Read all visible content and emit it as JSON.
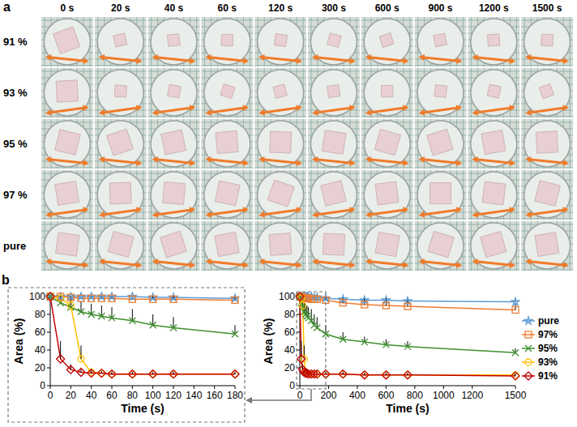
{
  "panel_a": {
    "letter": "a",
    "columns": [
      "0 s",
      "20 s",
      "40 s",
      "60 s",
      "120 s",
      "300 s",
      "600 s",
      "900 s",
      "1200 s",
      "1500 s"
    ],
    "rows": [
      "91 %",
      "93 %",
      "95 %",
      "97 %",
      "pure"
    ]
  },
  "panel_b_letter": "b",
  "chart_data": [
    {
      "type": "line",
      "x_label": "Time (s)",
      "y_label": "Area (%)",
      "x": [
        0,
        10,
        20,
        30,
        40,
        50,
        60,
        80,
        100,
        120,
        180
      ],
      "xlim": [
        0,
        180
      ],
      "xticks": [
        0,
        20,
        40,
        60,
        80,
        100,
        120,
        140,
        160,
        180
      ],
      "ylim": [
        0,
        100
      ],
      "yticks": [
        0,
        20,
        40,
        60,
        80,
        100
      ],
      "series": [
        {
          "color": "#5b9bd5",
          "marker": "star",
          "values": [
            100,
            100,
            100,
            100,
            100,
            100,
            100,
            100,
            99,
            99,
            98
          ],
          "errors": [
            0,
            0,
            0,
            0,
            0,
            0,
            0,
            0,
            1,
            1,
            2
          ]
        },
        {
          "color": "#ed7d31",
          "marker": "square",
          "values": [
            100,
            100,
            99,
            98,
            98,
            98,
            98,
            97,
            97,
            97,
            96
          ],
          "errors": [
            0,
            0,
            1,
            1,
            2,
            2,
            2,
            2,
            3,
            3,
            3
          ]
        },
        {
          "color": "#3f8f2f",
          "marker": "x",
          "values": [
            100,
            93,
            88,
            83,
            80,
            78,
            76,
            73,
            68,
            65,
            58
          ],
          "errors": [
            0,
            7,
            10,
            12,
            12,
            12,
            12,
            13,
            12,
            12,
            10
          ]
        },
        {
          "color": "#ffc000",
          "marker": "circle",
          "values": [
            100,
            98,
            90,
            30,
            15,
            14,
            13,
            13,
            13,
            13,
            13
          ],
          "errors": [
            0,
            2,
            8,
            15,
            3,
            2,
            2,
            2,
            2,
            2,
            2
          ]
        },
        {
          "color": "#c00000",
          "marker": "diamond",
          "values": [
            100,
            30,
            18,
            15,
            14,
            14,
            13,
            13,
            13,
            13,
            13
          ],
          "errors": [
            0,
            20,
            6,
            3,
            2,
            2,
            2,
            2,
            2,
            2,
            2
          ]
        }
      ]
    },
    {
      "type": "line",
      "x_label": "Time (s)",
      "y_label": "Area (%)",
      "legend": "right",
      "x": [
        0,
        10,
        20,
        30,
        40,
        50,
        60,
        80,
        100,
        120,
        180,
        300,
        450,
        600,
        750,
        1500
      ],
      "xlim": [
        0,
        1500
      ],
      "xticks": [
        0,
        200,
        400,
        600,
        800,
        1000,
        1200,
        1500
      ],
      "ylim": [
        0,
        100
      ],
      "yticks": [
        0,
        20,
        40,
        60,
        80,
        100
      ],
      "series": [
        {
          "name": "pure",
          "color": "#5b9bd5",
          "marker": "star",
          "values": [
            100,
            100,
            100,
            100,
            100,
            100,
            100,
            100,
            99,
            99,
            98,
            97,
            96,
            96,
            95,
            94
          ],
          "errors": [
            0,
            0,
            0,
            0,
            0,
            0,
            0,
            0,
            1,
            1,
            2,
            2,
            3,
            3,
            3,
            4
          ]
        },
        {
          "name": "97%",
          "color": "#ed7d31",
          "marker": "square",
          "values": [
            100,
            100,
            99,
            98,
            98,
            98,
            98,
            97,
            97,
            97,
            96,
            93,
            91,
            90,
            89,
            85
          ],
          "errors": [
            0,
            0,
            1,
            1,
            2,
            2,
            2,
            2,
            3,
            3,
            3,
            5,
            6,
            6,
            6,
            7
          ]
        },
        {
          "name": "95%",
          "color": "#3f8f2f",
          "marker": "x",
          "values": [
            100,
            93,
            88,
            83,
            80,
            78,
            76,
            73,
            68,
            65,
            58,
            52,
            49,
            46,
            44,
            37
          ],
          "errors": [
            0,
            7,
            10,
            12,
            12,
            12,
            12,
            13,
            12,
            12,
            10,
            8,
            6,
            6,
            6,
            5
          ]
        },
        {
          "name": "93%",
          "color": "#ffc000",
          "marker": "circle",
          "values": [
            100,
            98,
            90,
            30,
            15,
            14,
            13,
            13,
            13,
            13,
            13,
            13,
            12,
            12,
            12,
            12
          ],
          "errors": [
            0,
            2,
            8,
            15,
            3,
            2,
            2,
            2,
            2,
            2,
            2,
            2,
            2,
            2,
            2,
            2
          ]
        },
        {
          "name": "91%",
          "color": "#c00000",
          "marker": "diamond",
          "values": [
            100,
            30,
            18,
            15,
            14,
            14,
            13,
            13,
            13,
            13,
            13,
            13,
            12,
            12,
            12,
            11
          ],
          "errors": [
            0,
            20,
            6,
            3,
            2,
            2,
            2,
            2,
            2,
            2,
            2,
            2,
            2,
            2,
            2,
            2
          ]
        }
      ]
    }
  ]
}
